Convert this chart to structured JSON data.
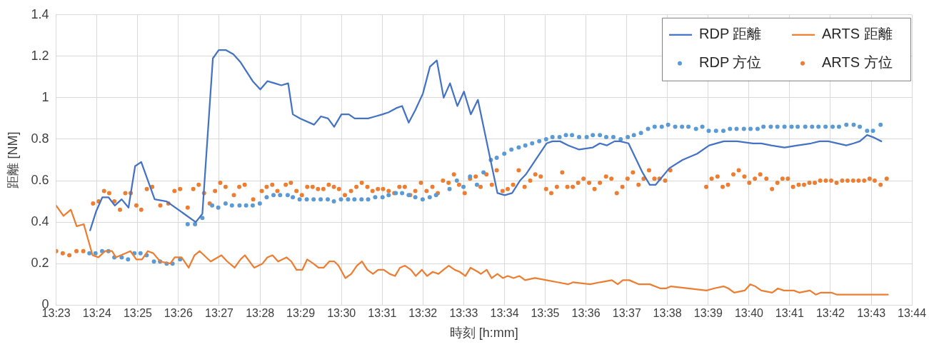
{
  "chart_data": {
    "type": "line",
    "xlabel": "時刻 [h:mm]",
    "ylabel": "距離 [NM]",
    "xlim": [
      13.3833,
      13.7333
    ],
    "xticks": [
      {
        "value": 13.3833,
        "label": "13:23"
      },
      {
        "value": 13.4,
        "label": "13:24"
      },
      {
        "value": 13.4167,
        "label": "13:25"
      },
      {
        "value": 13.4333,
        "label": "13:26"
      },
      {
        "value": 13.45,
        "label": "13:27"
      },
      {
        "value": 13.4667,
        "label": "13:28"
      },
      {
        "value": 13.4833,
        "label": "13:29"
      },
      {
        "value": 13.5,
        "label": "13:30"
      },
      {
        "value": 13.5167,
        "label": "13:31"
      },
      {
        "value": 13.5333,
        "label": "13:32"
      },
      {
        "value": 13.55,
        "label": "13:33"
      },
      {
        "value": 13.5667,
        "label": "13:34"
      },
      {
        "value": 13.5833,
        "label": "13:35"
      },
      {
        "value": 13.6,
        "label": "13:36"
      },
      {
        "value": 13.6167,
        "label": "13:37"
      },
      {
        "value": 13.6333,
        "label": "13:38"
      },
      {
        "value": 13.65,
        "label": "13:39"
      },
      {
        "value": 13.6667,
        "label": "13:40"
      },
      {
        "value": 13.6833,
        "label": "13:41"
      },
      {
        "value": 13.7,
        "label": "13:42"
      },
      {
        "value": 13.7167,
        "label": "13:43"
      },
      {
        "value": 13.7333,
        "label": "13:44"
      }
    ],
    "ylim": [
      0,
      1.4
    ],
    "yticks": [
      0,
      0.2,
      0.4,
      0.6,
      0.8,
      1,
      1.2,
      1.4
    ],
    "grid": true,
    "legend": "top right",
    "series": [
      {
        "name": "RDP 距離",
        "type": "line",
        "marker": "none",
        "color": "#4472c4",
        "x": [
          13.3972,
          13.3996,
          13.4022,
          13.4047,
          13.4073,
          13.4101,
          13.4129,
          13.4156,
          13.4181,
          13.4236,
          13.4285,
          13.4404,
          13.4431,
          13.4474,
          13.4498,
          13.4528,
          13.4558,
          13.4588,
          13.4637,
          13.4668,
          13.4697,
          13.4727,
          13.4754,
          13.4782,
          13.4801,
          13.4831,
          13.4888,
          13.4916,
          13.4945,
          13.497,
          13.5,
          13.503,
          13.5054,
          13.5109,
          13.5139,
          13.5168,
          13.5193,
          13.5224,
          13.5248,
          13.5275,
          13.5302,
          13.5333,
          13.5362,
          13.539,
          13.5418,
          13.5444,
          13.5474,
          13.5501,
          13.5529,
          13.5558,
          13.5638,
          13.5668,
          13.5698,
          13.573,
          13.5754,
          13.5839,
          13.5863,
          13.5894,
          13.5928,
          13.5972,
          13.6028,
          13.6057,
          13.6085,
          13.6117,
          13.6139,
          13.6174,
          13.6231,
          13.6261,
          13.6285,
          13.6341,
          13.6395,
          13.6455,
          13.6504,
          13.6564,
          13.6618,
          13.6683,
          13.6717,
          13.6757,
          13.6812,
          13.6866,
          13.6921,
          13.6956,
          13.6991,
          13.7065,
          13.7095,
          13.712,
          13.715,
          13.7174,
          13.7208
        ],
        "values": [
          0.36,
          0.45,
          0.52,
          0.52,
          0.48,
          0.51,
          0.47,
          0.67,
          0.69,
          0.51,
          0.5,
          0.4,
          0.44,
          1.19,
          1.23,
          1.23,
          1.21,
          1.17,
          1.08,
          1.04,
          1.08,
          1.07,
          1.06,
          1.07,
          0.92,
          0.9,
          0.87,
          0.91,
          0.9,
          0.86,
          0.92,
          0.92,
          0.9,
          0.9,
          0.91,
          0.92,
          0.93,
          0.95,
          0.96,
          0.88,
          0.94,
          1.02,
          1.15,
          1.18,
          1,
          1.07,
          0.96,
          1.03,
          0.92,
          0.99,
          0.54,
          0.53,
          0.54,
          0.6,
          0.63,
          0.78,
          0.79,
          0.79,
          0.77,
          0.75,
          0.76,
          0.78,
          0.77,
          0.79,
          0.79,
          0.78,
          0.64,
          0.58,
          0.58,
          0.66,
          0.7,
          0.73,
          0.77,
          0.79,
          0.79,
          0.78,
          0.78,
          0.77,
          0.76,
          0.77,
          0.78,
          0.79,
          0.79,
          0.77,
          0.78,
          0.79,
          0.82,
          0.81,
          0.79
        ]
      },
      {
        "name": "ARTS 距離",
        "type": "line",
        "marker": "none",
        "color": "#ed7d31",
        "x": [
          13.3833,
          13.3863,
          13.3893,
          13.3917,
          13.3946,
          13.3982,
          13.4006,
          13.4033,
          13.4062,
          13.4077,
          13.4137,
          13.4161,
          13.4184,
          13.4208,
          13.423,
          13.4259,
          13.43,
          13.4318,
          13.4346,
          13.4375,
          13.4399,
          13.442,
          13.4465,
          13.4509,
          13.4533,
          13.4563,
          13.4587,
          13.4605,
          13.4643,
          13.4677,
          13.4697,
          13.4718,
          13.4741,
          13.4775,
          13.4795,
          13.4816,
          13.484,
          13.486,
          13.4885,
          13.4906,
          13.4927,
          13.495,
          13.4971,
          13.4988,
          13.5016,
          13.504,
          13.5063,
          13.5084,
          13.5106,
          13.5129,
          13.515,
          13.5173,
          13.5197,
          13.5219,
          13.5239,
          13.526,
          13.5284,
          13.5304,
          13.5329,
          13.535,
          13.5373,
          13.5397,
          13.5417,
          13.5439,
          13.5463,
          13.5484,
          13.5507,
          13.5528,
          13.5558,
          13.557,
          13.5594,
          13.5614,
          13.5638,
          13.566,
          13.568,
          13.5704,
          13.5728,
          13.5751,
          13.5791,
          13.5838,
          13.5883,
          13.5927,
          13.5948,
          13.6017,
          13.6058,
          13.6106,
          13.613,
          13.6151,
          13.6177,
          13.6217,
          13.6261,
          13.6305,
          13.6327,
          13.6348,
          13.6493,
          13.6523,
          13.6562,
          13.6583,
          13.6606,
          13.6649,
          13.6672,
          13.6693,
          13.6717,
          13.6762,
          13.6785,
          13.6809,
          13.685,
          13.6872,
          13.6916,
          13.694,
          13.6961,
          13.7003,
          13.7027,
          13.7095,
          13.714,
          13.7235
        ],
        "values": [
          0.48,
          0.43,
          0.46,
          0.38,
          0.39,
          0.24,
          0.23,
          0.26,
          0.26,
          0.23,
          0.26,
          0.22,
          0.22,
          0.26,
          0.25,
          0.21,
          0.2,
          0.23,
          0.23,
          0.18,
          0.24,
          0.26,
          0.21,
          0.24,
          0.21,
          0.18,
          0.22,
          0.24,
          0.18,
          0.2,
          0.23,
          0.24,
          0.21,
          0.23,
          0.21,
          0.17,
          0.17,
          0.22,
          0.2,
          0.18,
          0.18,
          0.21,
          0.21,
          0.19,
          0.13,
          0.15,
          0.19,
          0.21,
          0.17,
          0.15,
          0.17,
          0.17,
          0.15,
          0.14,
          0.18,
          0.19,
          0.17,
          0.14,
          0.17,
          0.14,
          0.16,
          0.15,
          0.17,
          0.19,
          0.17,
          0.16,
          0.14,
          0.18,
          0.16,
          0.15,
          0.17,
          0.13,
          0.15,
          0.13,
          0.14,
          0.13,
          0.14,
          0.12,
          0.13,
          0.12,
          0.11,
          0.1,
          0.11,
          0.1,
          0.11,
          0.12,
          0.1,
          0.12,
          0.12,
          0.1,
          0.1,
          0.08,
          0.08,
          0.09,
          0.07,
          0.08,
          0.09,
          0.08,
          0.06,
          0.07,
          0.1,
          0.09,
          0.07,
          0.06,
          0.08,
          0.07,
          0.07,
          0.06,
          0.07,
          0.05,
          0.06,
          0.06,
          0.05,
          0.05,
          0.05,
          0.05
        ]
      },
      {
        "name": "RDP 方位",
        "type": "scatter",
        "marker": "circle",
        "color": "#5b9bd5",
        "x": [
          13.3969,
          13.3994,
          13.4021,
          13.4047,
          13.4071,
          13.4101,
          13.4127,
          13.4153,
          13.4178,
          13.4203,
          13.4233,
          13.4258,
          13.4285,
          13.4309,
          13.434,
          13.4371,
          13.4401,
          13.4431,
          13.4471,
          13.4496,
          13.4526,
          13.4552,
          13.4583,
          13.461,
          13.4637,
          13.4666,
          13.4694,
          13.4722,
          13.4749,
          13.478,
          13.4801,
          13.4829,
          13.4858,
          13.4886,
          13.4915,
          13.4944,
          13.4969,
          13.4998,
          13.5027,
          13.5053,
          13.5082,
          13.5109,
          13.5138,
          13.5168,
          13.5193,
          13.5222,
          13.5248,
          13.5275,
          13.5302,
          13.5332,
          13.5361,
          13.5387,
          13.5442,
          13.5472,
          13.5499,
          13.5526,
          13.5554,
          13.5581,
          13.5611,
          13.5635,
          13.5666,
          13.5695,
          13.5725,
          13.5752,
          13.578,
          13.5809,
          13.5837,
          13.5863,
          13.5892,
          13.5918,
          13.5943,
          13.5972,
          13.6003,
          13.6028,
          13.6057,
          13.6083,
          13.6112,
          13.6142,
          13.6171,
          13.6196,
          13.6225,
          13.6254,
          13.6281,
          13.631,
          13.6336,
          13.6365,
          13.6393,
          13.6419,
          13.645,
          13.6476,
          13.6502,
          13.6532,
          13.6562,
          13.6589,
          13.6616,
          13.6646,
          13.6673,
          13.6702,
          13.6726,
          13.6756,
          13.6783,
          13.6812,
          13.6841,
          13.6866,
          13.6897,
          13.6925,
          13.6951,
          13.698,
          13.7009,
          13.7035,
          13.7065,
          13.7095,
          13.712,
          13.715,
          13.7174,
          13.7205
        ],
        "values": [
          0.25,
          0.25,
          0.26,
          0.26,
          0.23,
          0.23,
          0.22,
          0.25,
          0.25,
          0.24,
          0.21,
          0.21,
          0.2,
          0.2,
          0.22,
          0.39,
          0.39,
          0.42,
          0.48,
          0.47,
          0.49,
          0.48,
          0.48,
          0.48,
          0.48,
          0.49,
          0.52,
          0.53,
          0.53,
          0.53,
          0.52,
          0.51,
          0.51,
          0.51,
          0.51,
          0.51,
          0.5,
          0.51,
          0.51,
          0.51,
          0.51,
          0.51,
          0.52,
          0.52,
          0.53,
          0.54,
          0.54,
          0.53,
          0.52,
          0.51,
          0.52,
          0.53,
          0.56,
          0.6,
          0.57,
          0.62,
          0.58,
          0.64,
          0.7,
          0.71,
          0.73,
          0.75,
          0.76,
          0.77,
          0.78,
          0.79,
          0.8,
          0.81,
          0.81,
          0.82,
          0.82,
          0.81,
          0.81,
          0.82,
          0.82,
          0.81,
          0.81,
          0.8,
          0.81,
          0.82,
          0.83,
          0.85,
          0.86,
          0.86,
          0.87,
          0.86,
          0.86,
          0.86,
          0.85,
          0.86,
          0.84,
          0.84,
          0.84,
          0.85,
          0.85,
          0.85,
          0.85,
          0.85,
          0.86,
          0.86,
          0.86,
          0.86,
          0.86,
          0.86,
          0.86,
          0.86,
          0.86,
          0.86,
          0.86,
          0.86,
          0.87,
          0.87,
          0.86,
          0.84,
          0.84,
          0.87
        ]
      },
      {
        "name": "ARTS 方位",
        "type": "scatter",
        "marker": "circle",
        "color": "#ed7d31",
        "x": [
          13.3833,
          13.386,
          13.3887,
          13.3916,
          13.3944,
          13.3984,
          13.4007,
          13.4029,
          13.405,
          13.4071,
          13.4094,
          13.4116,
          13.4138,
          13.4161,
          13.4181,
          13.4204,
          13.4226,
          13.4259,
          13.4292,
          13.4317,
          13.434,
          13.4371,
          13.4394,
          13.4416,
          13.4438,
          13.4461,
          13.4483,
          13.4504,
          13.4526,
          13.456,
          13.4582,
          13.4604,
          13.4639,
          13.4674,
          13.4694,
          13.4717,
          13.4738,
          13.4772,
          13.4793,
          13.4816,
          13.4838,
          13.486,
          13.4882,
          13.4904,
          13.4926,
          13.4948,
          13.4969,
          13.499,
          13.5014,
          13.5039,
          13.5061,
          13.5083,
          13.5106,
          13.5127,
          13.5149,
          13.517,
          13.5193,
          13.5216,
          13.5237,
          13.5259,
          13.5281,
          13.5302,
          13.5325,
          13.5348,
          13.5372,
          13.5394,
          13.5415,
          13.5438,
          13.546,
          13.5481,
          13.5504,
          13.5526,
          13.5549,
          13.5569,
          13.5593,
          13.5615,
          13.5635,
          13.5659,
          13.568,
          13.5702,
          13.5725,
          13.5749,
          13.5772,
          13.5793,
          13.5815,
          13.5837,
          13.5858,
          13.5881,
          13.5903,
          13.5924,
          13.5946,
          13.5968,
          13.599,
          13.6013,
          13.6035,
          13.6057,
          13.6082,
          13.6104,
          13.6126,
          13.6149,
          13.617,
          13.6192,
          13.6215,
          13.6236,
          13.6258,
          13.628,
          13.6301,
          13.6324,
          13.6345,
          13.6492,
          13.6514,
          13.6538,
          13.6559,
          13.6581,
          13.6603,
          13.6625,
          13.6648,
          13.6668,
          13.6691,
          13.6713,
          13.6738,
          13.6761,
          13.6783,
          13.6804,
          13.6826,
          13.6847,
          13.687,
          13.6892,
          13.6914,
          13.6936,
          13.6958,
          13.6981,
          13.7003,
          13.7025,
          13.7048,
          13.707,
          13.7093,
          13.7115,
          13.7138,
          13.716,
          13.7181,
          13.7205,
          13.723
        ],
        "values": [
          0.26,
          0.25,
          0.24,
          0.26,
          0.26,
          0.49,
          0.5,
          0.55,
          0.54,
          0.5,
          0.46,
          0.54,
          0.54,
          0.48,
          0.46,
          0.56,
          0.57,
          0.48,
          0.49,
          0.55,
          0.56,
          0.47,
          0.56,
          0.58,
          0.54,
          0.49,
          0.55,
          0.59,
          0.57,
          0.53,
          0.57,
          0.58,
          0.51,
          0.55,
          0.57,
          0.58,
          0.55,
          0.58,
          0.59,
          0.55,
          0.53,
          0.57,
          0.57,
          0.56,
          0.56,
          0.58,
          0.57,
          0.56,
          0.53,
          0.55,
          0.57,
          0.59,
          0.57,
          0.55,
          0.56,
          0.56,
          0.55,
          0.54,
          0.57,
          0.57,
          0.53,
          0.55,
          0.59,
          0.55,
          0.57,
          0.54,
          0.6,
          0.59,
          0.63,
          0.58,
          0.54,
          0.61,
          0.62,
          0.57,
          0.63,
          0.58,
          0.65,
          0.55,
          0.56,
          0.58,
          0.65,
          0.57,
          0.6,
          0.63,
          0.62,
          0.56,
          0.54,
          0.57,
          0.64,
          0.57,
          0.57,
          0.59,
          0.61,
          0.59,
          0.56,
          0.59,
          0.62,
          0.61,
          0.54,
          0.57,
          0.61,
          0.64,
          0.58,
          0.61,
          0.65,
          0.61,
          0.61,
          0.6,
          0.65,
          0.57,
          0.61,
          0.62,
          0.57,
          0.58,
          0.63,
          0.65,
          0.62,
          0.59,
          0.61,
          0.63,
          0.61,
          0.56,
          0.59,
          0.61,
          0.61,
          0.57,
          0.58,
          0.58,
          0.59,
          0.59,
          0.6,
          0.6,
          0.6,
          0.59,
          0.6,
          0.6,
          0.6,
          0.6,
          0.6,
          0.61,
          0.6,
          0.58,
          0.61
        ]
      }
    ]
  }
}
